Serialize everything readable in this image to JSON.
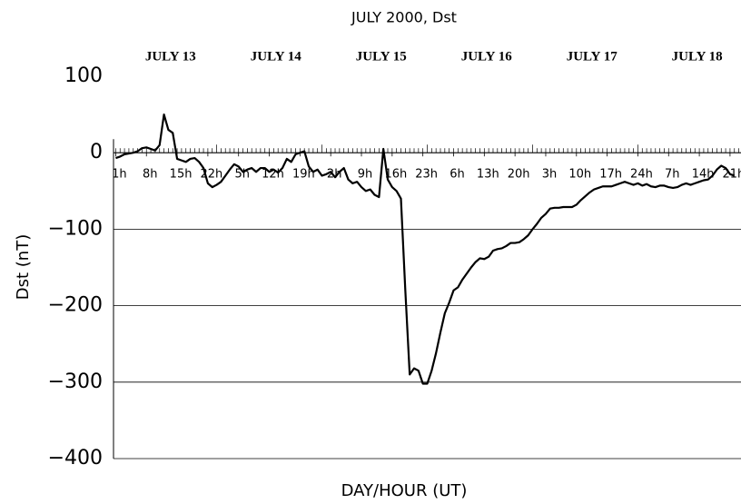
{
  "chart_data": {
    "type": "line",
    "title": "JULY 2000, Dst",
    "y_label": "Dst (nT)",
    "x_label": "DAY/HOUR (UT)",
    "day_labels": [
      "JULY 13",
      "JULY 14",
      "JULY 15",
      "JULY 16",
      "JULY 17",
      "JULY 18"
    ],
    "color": "#000000",
    "grid": true,
    "xlim": [
      0.5,
      143.5
    ],
    "ylim": [
      -400,
      100
    ],
    "yticks": [
      100,
      0,
      {
        "value": -100,
        "label": "−100"
      },
      {
        "value": -200,
        "label": "−200"
      },
      {
        "value": -300,
        "label": "−300"
      },
      {
        "value": -400,
        "label": "−400"
      }
    ],
    "xticks": [
      {
        "value": 1,
        "label": "1h"
      },
      {
        "value": 8,
        "label": "8h"
      },
      {
        "value": 15,
        "label": "15h"
      },
      {
        "value": 22,
        "label": "22h"
      },
      {
        "value": 29,
        "label": "5h"
      },
      {
        "value": 36,
        "label": "12h"
      },
      {
        "value": 43,
        "label": "19h"
      },
      {
        "value": 50,
        "label": "2h"
      },
      {
        "value": 57,
        "label": "9h"
      },
      {
        "value": 64,
        "label": "16h"
      },
      {
        "value": 71,
        "label": "23h"
      },
      {
        "value": 78,
        "label": "6h"
      },
      {
        "value": 85,
        "label": "13h"
      },
      {
        "value": 92,
        "label": "20h"
      },
      {
        "value": 99,
        "label": "3h"
      },
      {
        "value": 106,
        "label": "10h"
      },
      {
        "value": 113,
        "label": "17h"
      },
      {
        "value": 120,
        "label": "24h"
      },
      {
        "value": 127,
        "label": "7h"
      },
      {
        "value": 134,
        "label": "14h"
      },
      {
        "value": 141,
        "label": "21h"
      }
    ],
    "x": [
      1,
      2,
      3,
      4,
      5,
      6,
      7,
      8,
      9,
      10,
      11,
      12,
      13,
      14,
      15,
      16,
      17,
      18,
      19,
      20,
      21,
      22,
      23,
      24,
      25,
      26,
      27,
      28,
      29,
      30,
      31,
      32,
      33,
      34,
      35,
      36,
      37,
      38,
      39,
      40,
      41,
      42,
      43,
      44,
      45,
      46,
      47,
      48,
      49,
      50,
      51,
      52,
      53,
      54,
      55,
      56,
      57,
      58,
      59,
      60,
      61,
      62,
      63,
      64,
      65,
      66,
      67,
      68,
      69,
      70,
      71,
      72,
      73,
      74,
      75,
      76,
      77,
      78,
      79,
      80,
      81,
      82,
      83,
      84,
      85,
      86,
      87,
      88,
      89,
      90,
      91,
      92,
      93,
      94,
      95,
      96,
      97,
      98,
      99,
      100,
      101,
      102,
      103,
      104,
      105,
      106,
      107,
      108,
      109,
      110,
      111,
      112,
      113,
      114,
      115,
      116,
      117,
      118,
      119,
      120,
      121,
      122,
      123,
      124,
      125,
      126,
      127,
      128,
      129,
      130,
      131,
      132,
      133,
      134,
      135,
      136,
      137,
      138,
      139,
      140,
      141,
      142
    ],
    "values": [
      -7,
      -5,
      -2,
      -1,
      0,
      2,
      6,
      7,
      5,
      3,
      10,
      50,
      30,
      26,
      -8,
      -10,
      -12,
      -8,
      -7,
      -12,
      -20,
      -40,
      -45,
      -42,
      -38,
      -30,
      -22,
      -15,
      -18,
      -25,
      -22,
      -20,
      -25,
      -20,
      -20,
      -25,
      -22,
      -26,
      -20,
      -8,
      -12,
      -2,
      0,
      2,
      -18,
      -25,
      -22,
      -30,
      -28,
      -25,
      -32,
      -25,
      -20,
      -35,
      -40,
      -38,
      -45,
      -50,
      -48,
      -55,
      -58,
      5,
      -35,
      -45,
      -50,
      -60,
      -180,
      -290,
      -282,
      -285,
      -302,
      -302,
      -285,
      -262,
      -235,
      -210,
      -196,
      -180,
      -176,
      -166,
      -158,
      -150,
      -143,
      -138,
      -139,
      -136,
      -128,
      -126,
      -125,
      -122,
      -118,
      -118,
      -117,
      -113,
      -108,
      -100,
      -93,
      -85,
      -80,
      -73,
      -72,
      -72,
      -71,
      -71,
      -71,
      -68,
      -62,
      -57,
      -52,
      -48,
      -46,
      -44,
      -44,
      -44,
      -42,
      -40,
      -38,
      -40,
      -42,
      -40,
      -43,
      -41,
      -44,
      -45,
      -43,
      -43,
      -45,
      -46,
      -45,
      -42,
      -40,
      -42,
      -40,
      -38,
      -36,
      -35,
      -30,
      -22,
      -17,
      -20,
      -28,
      -30
    ]
  }
}
